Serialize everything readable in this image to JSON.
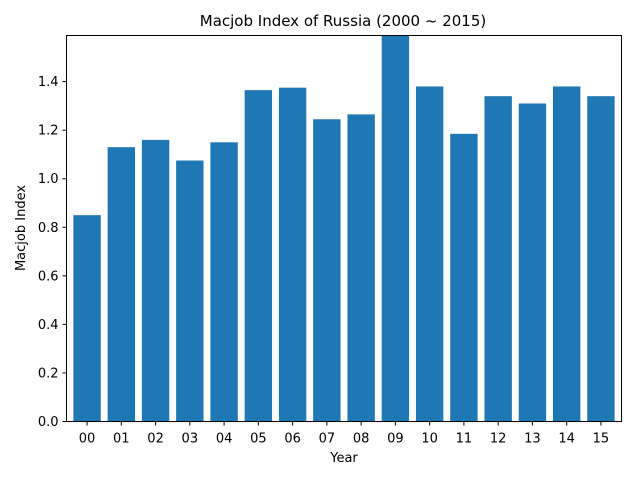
{
  "chart_data": {
    "type": "bar",
    "title": "Macjob Index of Russia (2000 ~ 2015)",
    "xlabel": "Year",
    "ylabel": "Macjob Index",
    "categories": [
      "00",
      "01",
      "02",
      "03",
      "04",
      "05",
      "06",
      "07",
      "08",
      "09",
      "10",
      "11",
      "12",
      "13",
      "14",
      "15"
    ],
    "values": [
      0.85,
      1.13,
      1.16,
      1.075,
      1.15,
      1.365,
      1.375,
      1.245,
      1.265,
      1.59,
      1.38,
      1.185,
      1.34,
      1.31,
      1.38,
      1.34
    ],
    "ylim": [
      0,
      1.59
    ],
    "yticks": [
      0.0,
      0.2,
      0.4,
      0.6,
      0.8,
      1.0,
      1.2,
      1.4
    ],
    "ytick_labels": [
      "0.0",
      "0.2",
      "0.4",
      "0.6",
      "0.8",
      "1.0",
      "1.2",
      "1.4"
    ],
    "bar_color": "#1f77b4",
    "grid": false,
    "legend": "none"
  }
}
